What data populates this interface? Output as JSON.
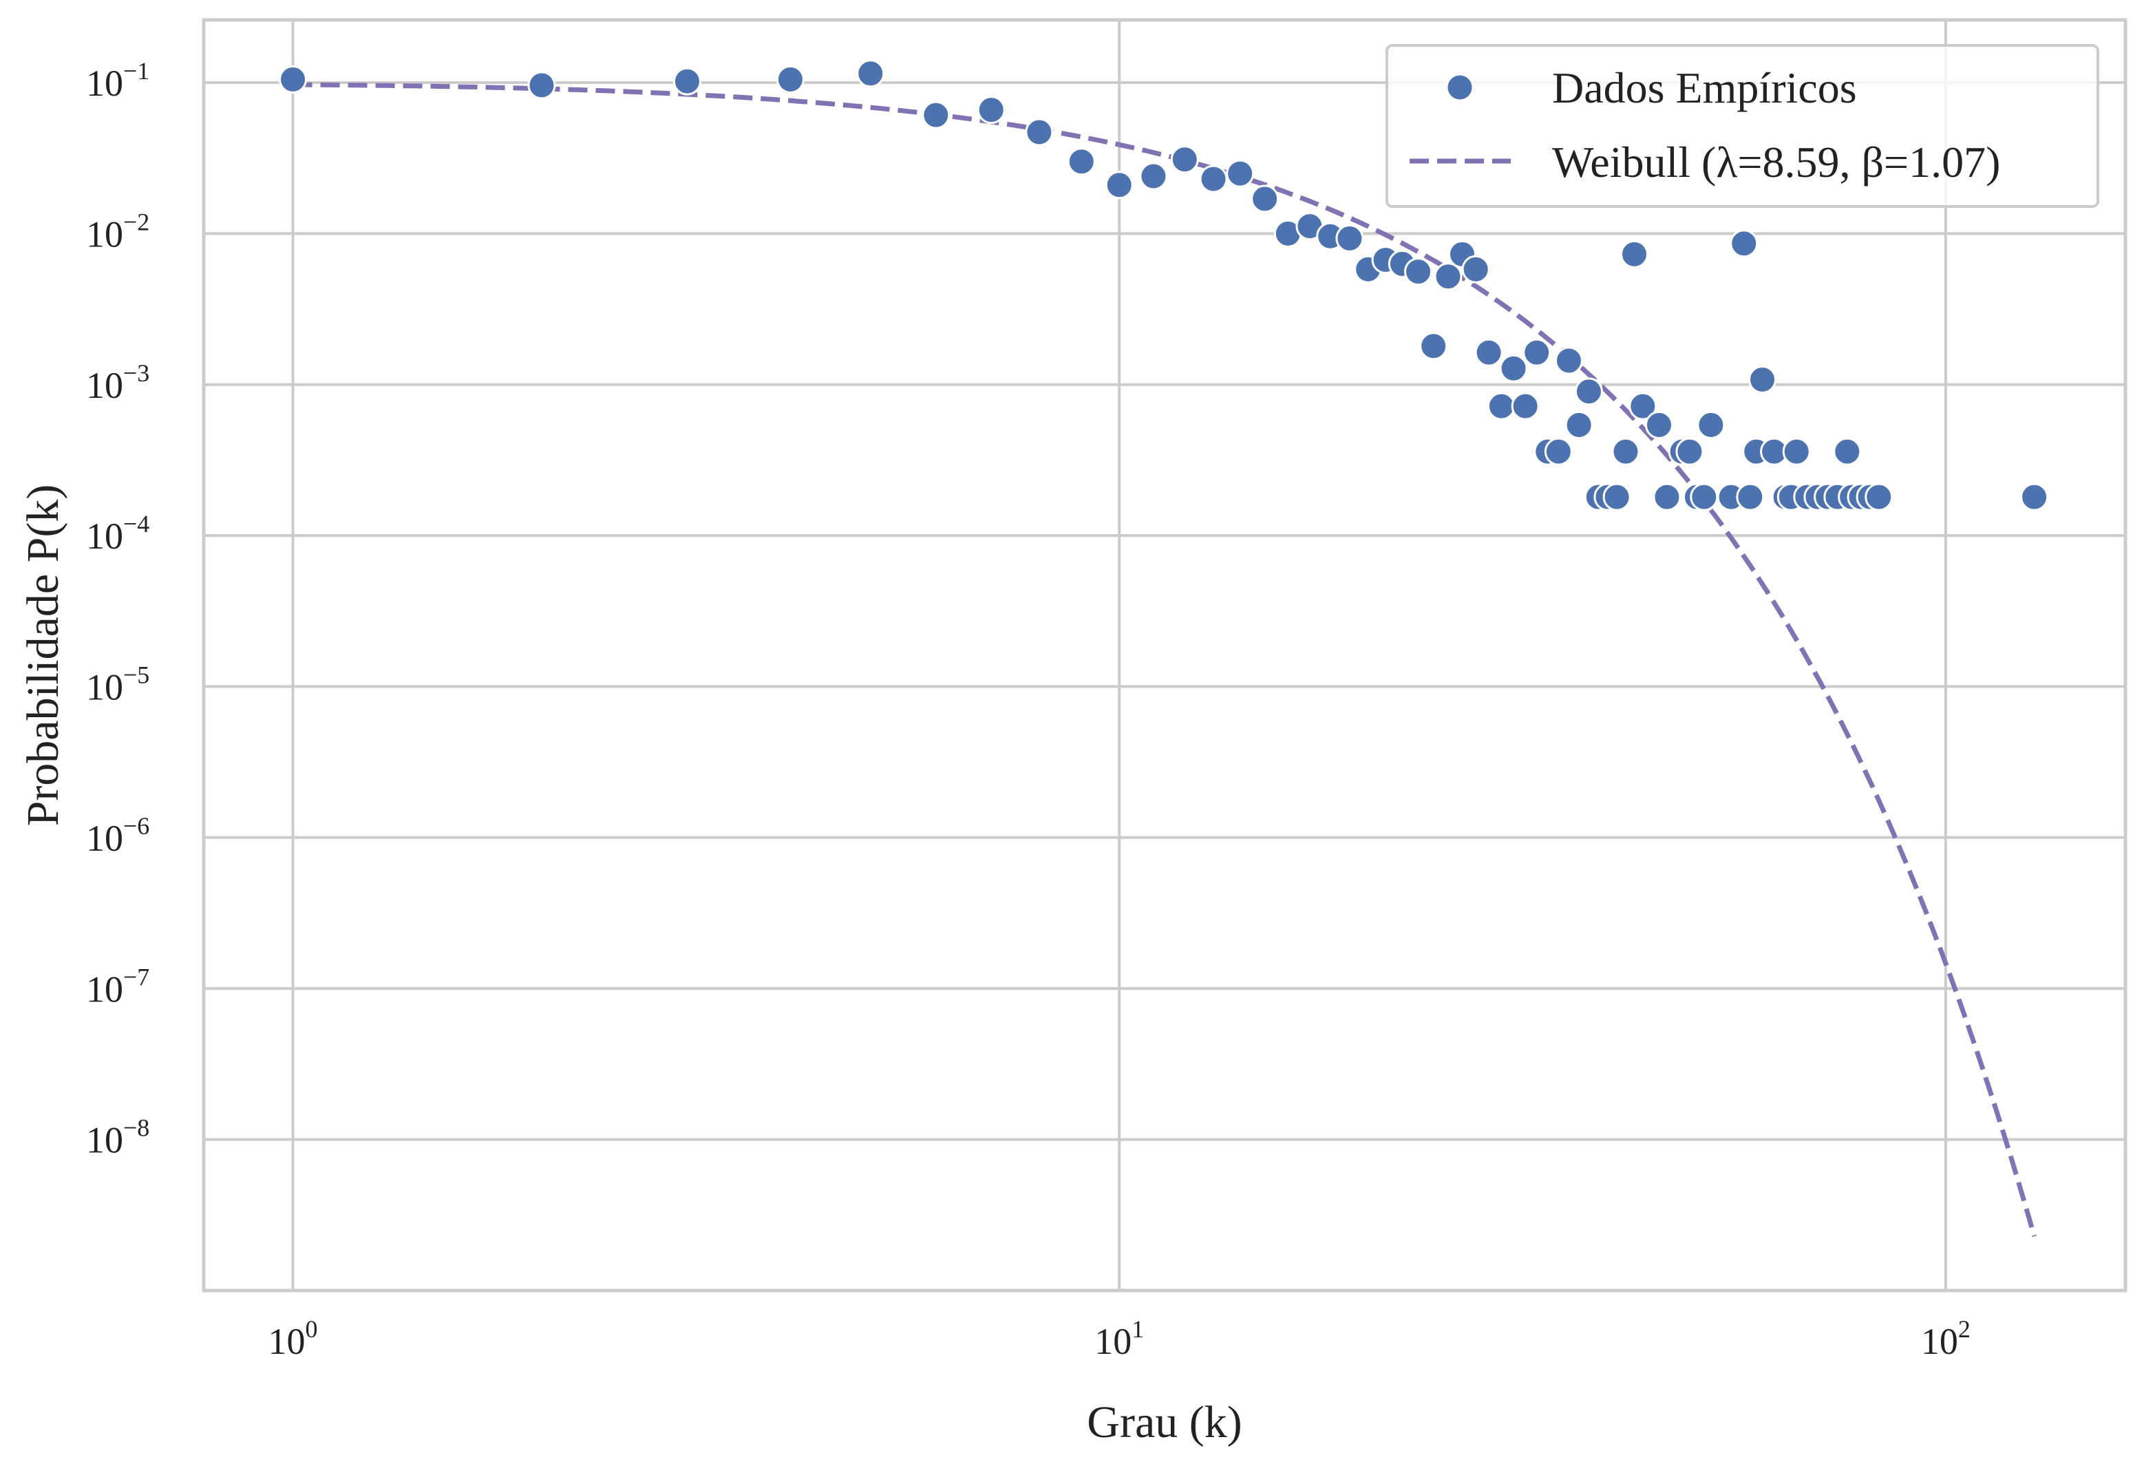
{
  "chart_data": {
    "type": "scatter",
    "xscale": "log",
    "yscale": "log",
    "xlim": [
      0.78,
      165
    ],
    "ylim": [
      1e-09,
      0.26
    ],
    "grid": true,
    "legend_position": "top-right",
    "xlabel": "Grau (k)",
    "ylabel": "Probabilidade P(k)",
    "xticks": [
      {
        "value": 1,
        "base": "10",
        "exp": "0"
      },
      {
        "value": 10,
        "base": "10",
        "exp": "1"
      },
      {
        "value": 100,
        "base": "10",
        "exp": "2"
      }
    ],
    "yticks": [
      {
        "value": 0.1,
        "base": "10",
        "exp": "−1"
      },
      {
        "value": 0.01,
        "base": "10",
        "exp": "−2"
      },
      {
        "value": 0.001,
        "base": "10",
        "exp": "−3"
      },
      {
        "value": 0.0001,
        "base": "10",
        "exp": "−4"
      },
      {
        "value": 1e-05,
        "base": "10",
        "exp": "−5"
      },
      {
        "value": 1e-06,
        "base": "10",
        "exp": "−6"
      },
      {
        "value": 1e-07,
        "base": "10",
        "exp": "−7"
      },
      {
        "value": 1e-08,
        "base": "10",
        "exp": "−8"
      }
    ],
    "series": [
      {
        "name": "Dados Empíricos",
        "kind": "scatter",
        "color": "#4c72b0",
        "points": [
          [
            1,
            0.105
          ],
          [
            2,
            0.096
          ],
          [
            3,
            0.102
          ],
          [
            4,
            0.105
          ],
          [
            5,
            0.115
          ],
          [
            6,
            0.061
          ],
          [
            7,
            0.066
          ],
          [
            8,
            0.047
          ],
          [
            9,
            0.03
          ],
          [
            10,
            0.021
          ],
          [
            11,
            0.024
          ],
          [
            12,
            0.031
          ],
          [
            13,
            0.023
          ],
          [
            14,
            0.025
          ],
          [
            15,
            0.017
          ],
          [
            16,
            0.01
          ],
          [
            17,
            0.0112
          ],
          [
            18,
            0.0096
          ],
          [
            19,
            0.0093
          ],
          [
            20,
            0.0058
          ],
          [
            21,
            0.0067
          ],
          [
            22,
            0.0063
          ],
          [
            23,
            0.0056
          ],
          [
            24,
            0.0018
          ],
          [
            25,
            0.0052
          ],
          [
            26,
            0.0073
          ],
          [
            27,
            0.0058
          ],
          [
            28,
            0.00163
          ],
          [
            29,
            0.00072
          ],
          [
            30,
            0.00128
          ],
          [
            31,
            0.00072
          ],
          [
            32,
            0.00163
          ],
          [
            33,
            0.00036
          ],
          [
            34,
            0.00036
          ],
          [
            35,
            0.00144
          ],
          [
            36,
            0.00054
          ],
          [
            37,
            0.0009
          ],
          [
            38,
            0.00018
          ],
          [
            39,
            0.00018
          ],
          [
            40,
            0.00018
          ],
          [
            41,
            0.00036
          ],
          [
            42,
            0.0073
          ],
          [
            43,
            0.00072
          ],
          [
            45,
            0.00054
          ],
          [
            46,
            0.00018
          ],
          [
            48,
            0.00036
          ],
          [
            49,
            0.00036
          ],
          [
            50,
            0.00018
          ],
          [
            51,
            0.00018
          ],
          [
            52,
            0.00054
          ],
          [
            55,
            0.00018
          ],
          [
            57,
            0.0086
          ],
          [
            58,
            0.00018
          ],
          [
            59,
            0.00036
          ],
          [
            60,
            0.00108
          ],
          [
            62,
            0.00036
          ],
          [
            64,
            0.00018
          ],
          [
            65,
            0.00018
          ],
          [
            66,
            0.00036
          ],
          [
            68,
            0.00018
          ],
          [
            70,
            0.00018
          ],
          [
            72,
            0.00018
          ],
          [
            74,
            0.00018
          ],
          [
            76,
            0.00036
          ],
          [
            77,
            0.00018
          ],
          [
            79,
            0.00018
          ],
          [
            81,
            0.00018
          ],
          [
            83,
            0.00018
          ],
          [
            128,
            0.00018
          ]
        ]
      },
      {
        "name": "Weibull (λ=8.59, β=1.07)",
        "kind": "line",
        "style": "dashed",
        "color": "#8172b3",
        "lambda": 8.59,
        "beta": 1.07,
        "x_range": [
          1,
          128
        ]
      }
    ]
  }
}
